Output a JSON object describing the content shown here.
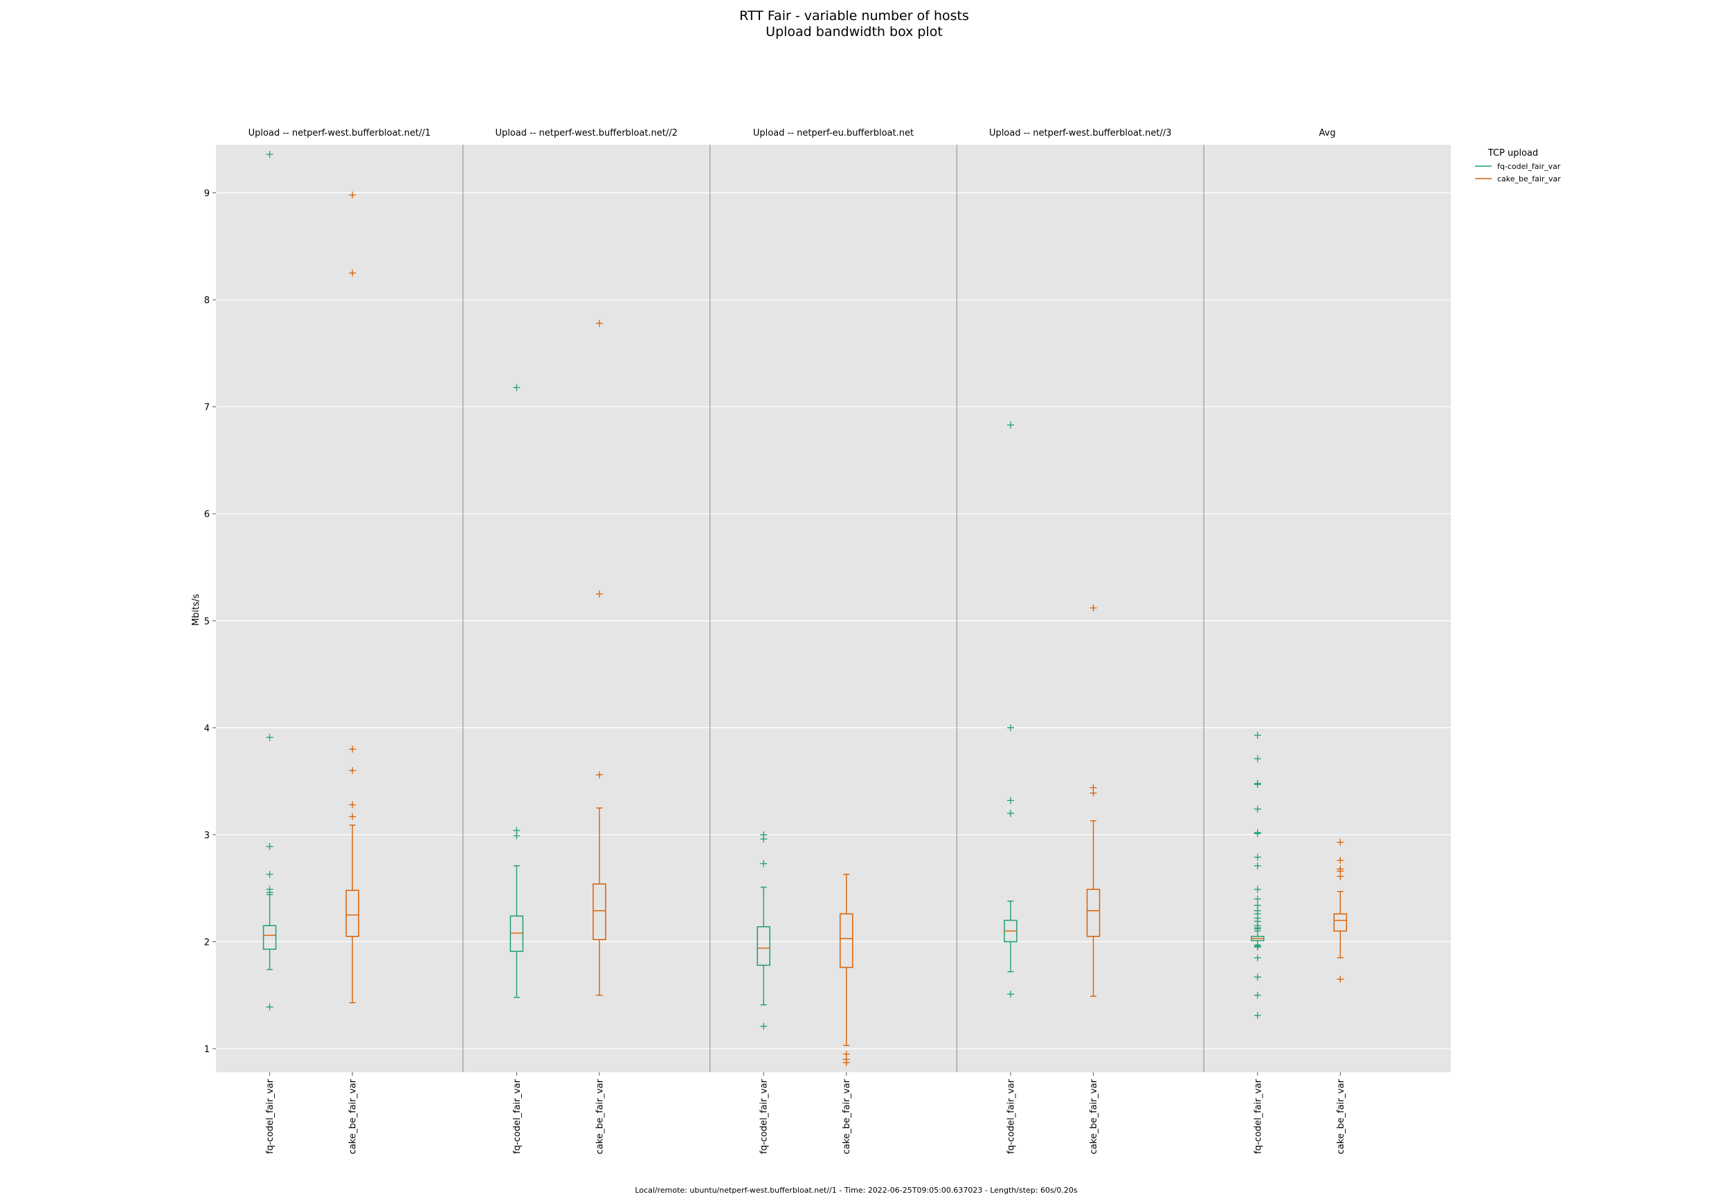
{
  "chart_data": {
    "type": "box",
    "title": "RTT Fair - variable number of hosts",
    "subtitle": "Upload bandwidth box plot",
    "ylabel": "Mbits/s",
    "ylim": [
      0.78,
      9.45
    ],
    "yticks": [
      1,
      2,
      3,
      4,
      5,
      6,
      7,
      8,
      9
    ],
    "grid": true,
    "legend": {
      "title": "TCP upload",
      "placement": "upper-right-outside",
      "entries": [
        {
          "name": "fq-codel_fair_var",
          "color": "#1b9e77"
        },
        {
          "name": "cake_be_fair_var",
          "color": "#d95f02"
        }
      ]
    },
    "categories": [
      "fq-codel_fair_var",
      "cake_be_fair_var"
    ],
    "footer": "Local/remote: ubuntu/netperf-west.bufferbloat.net//1 - Time: 2022-06-25T09:05:00.637023 - Length/step: 60s/0.20s",
    "panels": [
      {
        "title": "Upload -- netperf-west.bufferbloat.net//1",
        "boxes": [
          {
            "series": "fq-codel_fair_var",
            "color": "#1b9e77",
            "whisker_low": 1.74,
            "q1": 1.93,
            "median": 2.06,
            "q3": 2.15,
            "whisker_high": 2.44,
            "outliers": [
              9.36,
              3.91,
              2.89,
              2.63,
              2.49,
              2.46,
              1.39
            ]
          },
          {
            "series": "cake_be_fair_var",
            "color": "#d95f02",
            "whisker_low": 1.43,
            "q1": 2.05,
            "median": 2.25,
            "q3": 2.48,
            "whisker_high": 3.09,
            "outliers": [
              8.98,
              8.25,
              3.8,
              3.6,
              3.28,
              3.17
            ]
          }
        ]
      },
      {
        "title": "Upload -- netperf-west.bufferbloat.net//2",
        "boxes": [
          {
            "series": "fq-codel_fair_var",
            "color": "#1b9e77",
            "whisker_low": 1.48,
            "q1": 1.91,
            "median": 2.08,
            "q3": 2.24,
            "whisker_high": 2.71,
            "outliers": [
              7.18,
              3.04,
              2.99
            ]
          },
          {
            "series": "cake_be_fair_var",
            "color": "#d95f02",
            "whisker_low": 1.5,
            "q1": 2.02,
            "median": 2.29,
            "q3": 2.54,
            "whisker_high": 3.25,
            "outliers": [
              7.78,
              5.25,
              3.56
            ]
          }
        ]
      },
      {
        "title": "Upload -- netperf-eu.bufferbloat.net",
        "boxes": [
          {
            "series": "fq-codel_fair_var",
            "color": "#1b9e77",
            "whisker_low": 1.41,
            "q1": 1.78,
            "median": 1.94,
            "q3": 2.14,
            "whisker_high": 2.51,
            "outliers": [
              3.0,
              2.96,
              2.73,
              1.21
            ]
          },
          {
            "series": "cake_be_fair_var",
            "color": "#d95f02",
            "whisker_low": 1.03,
            "q1": 1.76,
            "median": 2.03,
            "q3": 2.26,
            "whisker_high": 2.63,
            "outliers": [
              0.95,
              0.9,
              0.87
            ]
          }
        ]
      },
      {
        "title": "Upload -- netperf-west.bufferbloat.net//3",
        "boxes": [
          {
            "series": "fq-codel_fair_var",
            "color": "#1b9e77",
            "whisker_low": 1.72,
            "q1": 2.0,
            "median": 2.1,
            "q3": 2.2,
            "whisker_high": 2.38,
            "outliers": [
              6.83,
              4.0,
              3.32,
              3.2,
              1.51
            ]
          },
          {
            "series": "cake_be_fair_var",
            "color": "#d95f02",
            "whisker_low": 1.49,
            "q1": 2.05,
            "median": 2.29,
            "q3": 2.49,
            "whisker_high": 3.13,
            "outliers": [
              5.12,
              3.44,
              3.39
            ]
          }
        ]
      },
      {
        "title": "Avg",
        "boxes": [
          {
            "series": "fq-codel_fair_var",
            "color": "#1b9e77",
            "whisker_low": 1.97,
            "q1": 2.01,
            "median": 2.03,
            "q3": 2.05,
            "whisker_high": 2.1,
            "outliers": [
              3.93,
              3.71,
              3.48,
              3.47,
              3.24,
              3.02,
              3.01,
              2.79,
              2.71,
              2.49,
              2.4,
              2.34,
              2.29,
              2.26,
              2.22,
              2.19,
              2.15,
              2.13,
              2.12,
              1.96,
              1.95,
              1.85,
              1.67,
              1.5,
              1.31
            ]
          },
          {
            "series": "cake_be_fair_var",
            "color": "#d95f02",
            "whisker_low": 1.85,
            "q1": 2.1,
            "median": 2.2,
            "q3": 2.26,
            "whisker_high": 2.47,
            "outliers": [
              2.93,
              2.76,
              2.68,
              2.66,
              2.61,
              1.65
            ]
          }
        ]
      }
    ]
  }
}
